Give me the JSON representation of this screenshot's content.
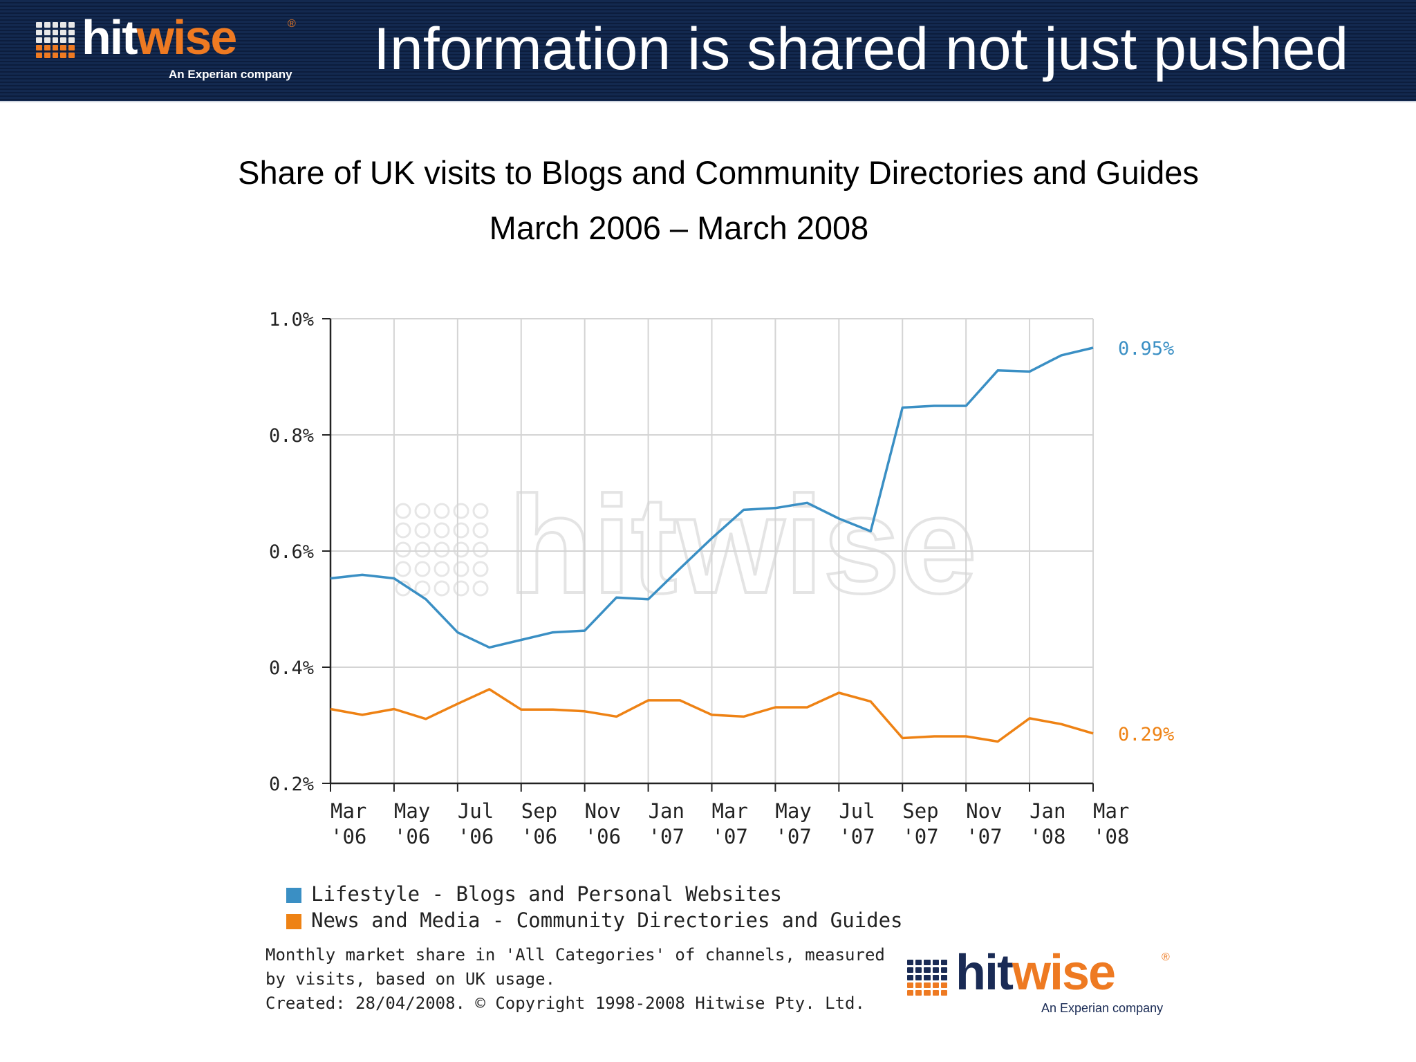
{
  "header": {
    "brand": {
      "part1": "hit",
      "part2": "wise",
      "registered": "®",
      "tagline": "An Experian company"
    },
    "title": "Information is shared not just pushed"
  },
  "subtitle_line1": "Share of UK visits to Blogs and Community Directories and Guides",
  "subtitle_line2": "March 2006 – March 2008",
  "watermark": "hitwise",
  "colors": {
    "header_bg": "#13294f",
    "series_blue": "#3a8fc4",
    "series_orange": "#ee8214",
    "brand_orange": "#ee7a22",
    "brand_navy": "#1a2b55"
  },
  "chart_data": {
    "type": "line",
    "title": "",
    "xlabel": "",
    "ylabel": "",
    "ylim": [
      0.2,
      1.0
    ],
    "y_ticks": [
      1.0,
      0.8,
      0.6,
      0.4,
      0.2
    ],
    "y_tick_labels": [
      "1.0%",
      "0.8%",
      "0.6%",
      "0.4%",
      "0.2%"
    ],
    "x_tick_labels": [
      [
        "Mar",
        "'06"
      ],
      [
        "May",
        "'06"
      ],
      [
        "Jul",
        "'06"
      ],
      [
        "Sep",
        "'06"
      ],
      [
        "Nov",
        "'06"
      ],
      [
        "Jan",
        "'07"
      ],
      [
        "Mar",
        "'07"
      ],
      [
        "May",
        "'07"
      ],
      [
        "Jul",
        "'07"
      ],
      [
        "Sep",
        "'07"
      ],
      [
        "Nov",
        "'07"
      ],
      [
        "Jan",
        "'08"
      ],
      [
        "Mar",
        "'08"
      ]
    ],
    "x": [
      "Mar 06",
      "Apr 06",
      "May 06",
      "Jun 06",
      "Jul 06",
      "Aug 06",
      "Sep 06",
      "Oct 06",
      "Nov 06",
      "Dec 06",
      "Jan 07",
      "Feb 07",
      "Mar 07",
      "Apr 07",
      "May 07",
      "Jun 07",
      "Jul 07",
      "Aug 07",
      "Sep 07",
      "Oct 07",
      "Nov 07",
      "Dec 07",
      "Jan 08",
      "Feb 08",
      "Mar 08"
    ],
    "grid": true,
    "legend_position": "bottom",
    "series": [
      {
        "name": "Lifestyle - Blogs and Personal Websites",
        "color": "#3a8fc4",
        "end_label": "0.95%",
        "values": [
          0.553,
          0.559,
          0.553,
          0.517,
          0.46,
          0.434,
          0.447,
          0.46,
          0.463,
          0.52,
          0.517,
          0.57,
          0.622,
          0.671,
          0.674,
          0.683,
          0.656,
          0.634,
          0.847,
          0.85,
          0.85,
          0.911,
          0.909,
          0.937,
          0.95
        ]
      },
      {
        "name": "News and Media - Community Directories and Guides",
        "color": "#ee8214",
        "end_label": "0.29%",
        "values": [
          0.328,
          0.318,
          0.328,
          0.311,
          0.337,
          0.362,
          0.327,
          0.327,
          0.324,
          0.315,
          0.343,
          0.343,
          0.318,
          0.315,
          0.331,
          0.331,
          0.356,
          0.341,
          0.278,
          0.281,
          0.281,
          0.272,
          0.312,
          0.302,
          0.286
        ]
      }
    ]
  },
  "footnote": {
    "line1": "Monthly market share in 'All Categories' of channels, measured",
    "line2": "by visits, based on UK usage.",
    "line3": "Created: 28/04/2008. © Copyright 1998-2008 Hitwise Pty. Ltd."
  }
}
